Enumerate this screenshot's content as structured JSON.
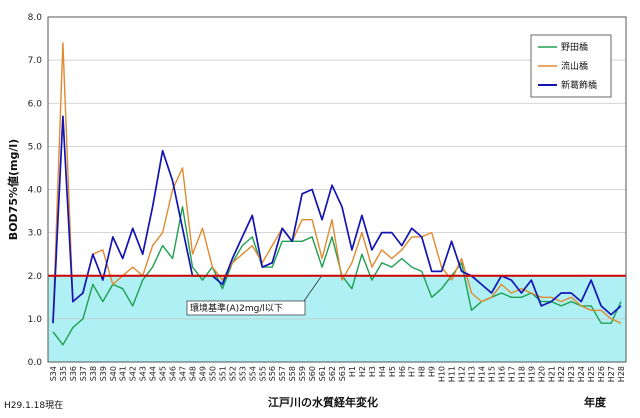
{
  "colors": {
    "standard_fill": "#aef0f4",
    "standard_line": "#cc0000",
    "plot_border": "#555555",
    "grid": "#c8c8c8"
  },
  "chart_data": {
    "type": "line",
    "title": "江戸川の水質経年変化",
    "xlabel": "年度",
    "ylabel": "BOD75%値(mg/l)",
    "ylim": [
      0,
      8
    ],
    "yticks": [
      "0.0",
      "1.0",
      "2.0",
      "3.0",
      "4.0",
      "5.0",
      "6.0",
      "7.0",
      "8.0"
    ],
    "grid": true,
    "legend_position": "top-right",
    "note": "H29.1.18現在",
    "standard": {
      "value": 2.0,
      "label": "環境基準(A)2mg/l以下"
    },
    "categories": [
      "S34",
      "S35",
      "S36",
      "S37",
      "S38",
      "S39",
      "S40",
      "S41",
      "S42",
      "S43",
      "S44",
      "S45",
      "S46",
      "S47",
      "S48",
      "S49",
      "S50",
      "S51",
      "S52",
      "S53",
      "S54",
      "S55",
      "S56",
      "S57",
      "S58",
      "S59",
      "S60",
      "S61",
      "S62",
      "S63",
      "H1",
      "H2",
      "H3",
      "H4",
      "H5",
      "H6",
      "H7",
      "H8",
      "H9",
      "H10",
      "H11",
      "H12",
      "H13",
      "H14",
      "H15",
      "H16",
      "H17",
      "H18",
      "H19",
      "H20",
      "H21",
      "H22",
      "H23",
      "H24",
      "H25",
      "H26",
      "H27",
      "H28"
    ],
    "series": [
      {
        "name": "野田橋",
        "color": "#1ea050",
        "values": [
          0.7,
          0.4,
          0.8,
          1.0,
          1.8,
          1.4,
          1.8,
          1.7,
          1.3,
          1.9,
          2.2,
          2.7,
          2.4,
          3.6,
          2.2,
          1.9,
          2.2,
          1.7,
          2.3,
          2.7,
          2.9,
          2.2,
          2.2,
          2.8,
          2.8,
          2.8,
          2.9,
          2.2,
          2.9,
          2.0,
          1.7,
          2.5,
          1.9,
          2.3,
          2.2,
          2.4,
          2.2,
          2.1,
          1.5,
          1.7,
          2.0,
          2.3,
          1.2,
          1.4,
          1.5,
          1.6,
          1.5,
          1.5,
          1.6,
          1.4,
          1.4,
          1.3,
          1.4,
          1.3,
          1.3,
          0.9,
          0.9,
          1.4
        ]
      },
      {
        "name": "流山橋",
        "color": "#e08a30",
        "values": [
          0.9,
          7.4,
          1.4,
          1.6,
          2.5,
          2.6,
          1.8,
          2.0,
          2.2,
          2.0,
          2.7,
          3.0,
          4.0,
          4.5,
          2.5,
          3.1,
          2.2,
          1.9,
          2.3,
          2.5,
          2.7,
          2.3,
          2.7,
          3.1,
          2.8,
          3.3,
          3.3,
          2.4,
          3.3,
          1.9,
          2.3,
          3.0,
          2.2,
          2.6,
          2.4,
          2.6,
          2.9,
          2.9,
          3.0,
          2.2,
          1.9,
          2.4,
          1.6,
          1.4,
          1.5,
          1.8,
          1.6,
          1.7,
          1.6,
          1.5,
          1.5,
          1.4,
          1.5,
          1.3,
          1.2,
          1.2,
          1.0,
          0.9
        ]
      },
      {
        "name": "新葛飾橋",
        "color": "#1414b4",
        "values": [
          0.9,
          5.7,
          1.4,
          1.6,
          2.5,
          1.9,
          2.9,
          2.4,
          3.1,
          2.5,
          3.6,
          4.9,
          4.2,
          3.1,
          2.0,
          2.0,
          2.0,
          1.8,
          2.4,
          2.9,
          3.4,
          2.2,
          2.3,
          3.1,
          2.8,
          3.9,
          4.0,
          3.3,
          4.1,
          3.6,
          2.6,
          3.4,
          2.6,
          3.0,
          3.0,
          2.7,
          3.1,
          2.9,
          2.1,
          2.1,
          2.8,
          2.1,
          2.0,
          1.8,
          1.6,
          2.0,
          1.9,
          1.6,
          1.9,
          1.3,
          1.4,
          1.6,
          1.6,
          1.4,
          1.9,
          1.3,
          1.1,
          1.3
        ]
      }
    ]
  }
}
